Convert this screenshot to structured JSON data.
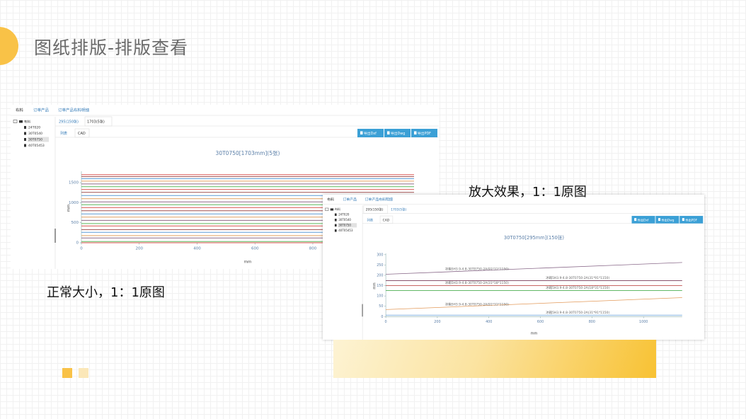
{
  "title": "图纸排版-排版查看",
  "captions": [
    "正常大小，1：1原图",
    "放大效果，1：1原图"
  ],
  "screenshots": [
    {
      "nav": [
        "布料",
        "订单产品",
        "订单产品布料明细"
      ],
      "tree": {
        "root": "布料",
        "items": [
          "24T020",
          "30T0540",
          "30T0750",
          "40T05453"
        ],
        "selected": 2
      },
      "tabs": [
        "295(150张)",
        "1703(5张)"
      ],
      "active_tab": 1,
      "view_tabs": [
        "列表",
        "CAD"
      ],
      "active_view": 1,
      "buttons": [
        "导出Dxf",
        "导出Dwg",
        "导出PDF"
      ],
      "chart": {
        "type": "line",
        "title": "30T0750[1703mm](5张)",
        "xlabel": "mm",
        "ylabel": "mm",
        "x": [
          0,
          1150
        ],
        "xlim": [
          0,
          1150
        ],
        "ylim": [
          0,
          1750
        ],
        "xticks": [
          0,
          200,
          400,
          600,
          800
        ],
        "yticks": [
          0,
          500,
          1000,
          1500
        ],
        "series": [
          {
            "color": "#d9534f",
            "values": [
              0,
              0
            ]
          },
          {
            "color": "#5cb85c",
            "values": [
              30,
              30
            ]
          },
          {
            "color": "#8e6c8a",
            "values": [
              120,
              120
            ]
          },
          {
            "color": "#e0a060",
            "values": [
              180,
              180
            ]
          },
          {
            "color": "#5b9bd5",
            "values": [
              260,
              260
            ]
          },
          {
            "color": "#a05050",
            "values": [
              330,
              330
            ]
          },
          {
            "color": "#d9534f",
            "values": [
              420,
              420
            ]
          },
          {
            "color": "#5cb85c",
            "values": [
              480,
              480
            ]
          },
          {
            "color": "#8e6c8a",
            "values": [
              560,
              560
            ]
          },
          {
            "color": "#e0a060",
            "values": [
              640,
              640
            ]
          },
          {
            "color": "#5b9bd5",
            "values": [
              720,
              720
            ]
          },
          {
            "color": "#a05050",
            "values": [
              800,
              800
            ]
          },
          {
            "color": "#d9534f",
            "values": [
              880,
              880
            ]
          },
          {
            "color": "#5cb85c",
            "values": [
              950,
              950
            ]
          },
          {
            "color": "#8e6c8a",
            "values": [
              1020,
              1020
            ]
          },
          {
            "color": "#e0a060",
            "values": [
              1100,
              1100
            ]
          },
          {
            "color": "#5b9bd5",
            "values": [
              1180,
              1180
            ]
          },
          {
            "color": "#a05050",
            "values": [
              1260,
              1260
            ]
          },
          {
            "color": "#d9534f",
            "values": [
              1330,
              1330
            ]
          },
          {
            "color": "#5cb85c",
            "values": [
              1400,
              1400
            ]
          },
          {
            "color": "#8e6c8a",
            "values": [
              1470,
              1470
            ]
          },
          {
            "color": "#e0a060",
            "values": [
              1540,
              1540
            ]
          },
          {
            "color": "#5b9bd5",
            "values": [
              1600,
              1600
            ]
          },
          {
            "color": "#a05050",
            "values": [
              1650,
              1650
            ]
          },
          {
            "color": "#d9534f",
            "values": [
              1700,
              1700
            ]
          }
        ]
      }
    },
    {
      "nav": [
        "布料",
        "订单产品",
        "订单产品布料明细"
      ],
      "tree": {
        "root": "布料",
        "items": [
          "24T020",
          "30T0540",
          "30T0750",
          "40T05453"
        ],
        "selected": 2
      },
      "tabs": [
        "295(150张)",
        "1703(5张)"
      ],
      "active_tab": 0,
      "view_tabs": [
        "列表",
        "CAD"
      ],
      "active_view": 1,
      "buttons": [
        "导出Dxf",
        "导出Dwg",
        "导出PDF"
      ],
      "chart": {
        "type": "line",
        "title": "30T0750[295mm](150张)",
        "xlabel": "mm",
        "ylabel": "mm",
        "x": [
          0,
          1150
        ],
        "xlim": [
          0,
          1150
        ],
        "ylim": [
          0,
          300
        ],
        "xticks": [
          0,
          200,
          400,
          600,
          800,
          1000
        ],
        "yticks": [
          0,
          50,
          100,
          150,
          200,
          250,
          300
        ],
        "series": [
          {
            "name": "冰箱5H3.9-4.8-30T0750-2A(91*31*1150)",
            "color": "#8a6a8a",
            "values": [
              205,
              262
            ]
          },
          {
            "name": "冰箱5H3.9-4.8-30T0750-2A(31*91*1150)",
            "color": "#7a3b5a",
            "values": [
              174,
              174
            ]
          },
          {
            "name": "冰箱5H3.9-4.8-30T0750-2A(31*18*1150)",
            "color": "#c0504d",
            "values": [
              150,
              150
            ]
          },
          {
            "name": "冰箱5H3.9-4.8-30T0750-2A(18*31*1150)",
            "color": "#4caf50",
            "values": [
              126,
              126
            ]
          },
          {
            "name": "冰箱5H3.9-4.8-30T0750-2A(91*31*1150)",
            "color": "#e39a5a",
            "values": [
              34,
              92
            ]
          },
          {
            "name": "冰箱5H3.9-4.8-30T0750-2A(31*91*1150)",
            "color": "#5b9bd5",
            "values": [
              7,
              7
            ]
          }
        ]
      }
    }
  ]
}
